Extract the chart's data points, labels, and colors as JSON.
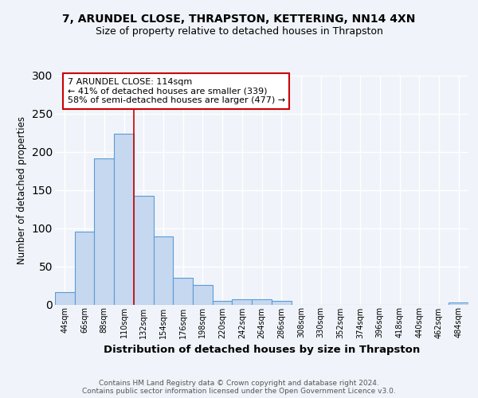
{
  "title": "7, ARUNDEL CLOSE, THRAPSTON, KETTERING, NN14 4XN",
  "subtitle": "Size of property relative to detached houses in Thrapston",
  "xlabel": "Distribution of detached houses by size in Thrapston",
  "ylabel": "Number of detached properties",
  "bar_labels": [
    "44sqm",
    "66sqm",
    "88sqm",
    "110sqm",
    "132sqm",
    "154sqm",
    "176sqm",
    "198sqm",
    "220sqm",
    "242sqm",
    "264sqm",
    "286sqm",
    "308sqm",
    "330sqm",
    "352sqm",
    "374sqm",
    "396sqm",
    "418sqm",
    "440sqm",
    "462sqm",
    "484sqm"
  ],
  "bar_values": [
    16,
    95,
    191,
    224,
    142,
    89,
    35,
    26,
    5,
    7,
    7,
    5,
    0,
    0,
    0,
    0,
    0,
    0,
    0,
    0,
    3
  ],
  "bar_fill_color": "#c5d8ef",
  "bar_edge_color": "#5b9bd5",
  "vline_x": 3.5,
  "vline_color": "#cc0000",
  "annotation_text": "7 ARUNDEL CLOSE: 114sqm\n← 41% of detached houses are smaller (339)\n58% of semi-detached houses are larger (477) →",
  "annotation_box_color": "white",
  "annotation_box_edge_color": "#cc0000",
  "ylim": [
    0,
    300
  ],
  "yticks": [
    0,
    50,
    100,
    150,
    200,
    250,
    300
  ],
  "footer_text": "Contains HM Land Registry data © Crown copyright and database right 2024.\nContains public sector information licensed under the Open Government Licence v3.0.",
  "background_color": "#f0f4fa",
  "grid_color": "#ffffff",
  "title_fontsize": 10,
  "subtitle_fontsize": 9
}
